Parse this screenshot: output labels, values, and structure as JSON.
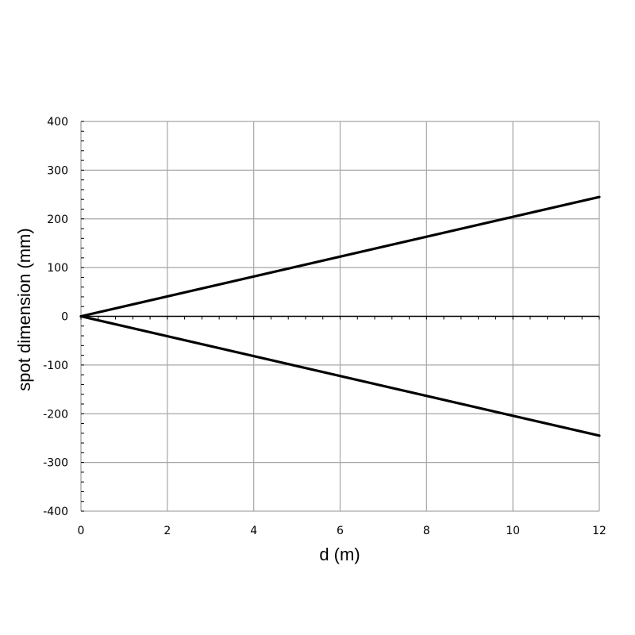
{
  "chart_data": {
    "type": "line",
    "title": "",
    "xlabel": "d (m)",
    "ylabel": "spot dimension (mm)",
    "xlim": [
      0,
      12
    ],
    "ylim": [
      -400,
      400
    ],
    "x_ticks": [
      0,
      2,
      4,
      6,
      8,
      10,
      12
    ],
    "y_ticks": [
      400,
      300,
      200,
      100,
      0,
      -100,
      -200,
      -300,
      -400
    ],
    "x_tick_labels": [
      "0",
      "2",
      "4",
      "6",
      "8",
      "10",
      "12"
    ],
    "y_tick_labels": [
      "400",
      "300",
      "200",
      "100",
      "0",
      "-100",
      "-200",
      "-300",
      "-400"
    ],
    "grid": true,
    "legend": "none",
    "series": [
      {
        "x": [
          0,
          12
        ],
        "y": [
          0,
          245
        ]
      },
      {
        "x": [
          0,
          12
        ],
        "y": [
          0,
          -245
        ]
      }
    ],
    "colors": {
      "series": "#000000",
      "grid": "#a6a6a6"
    }
  }
}
